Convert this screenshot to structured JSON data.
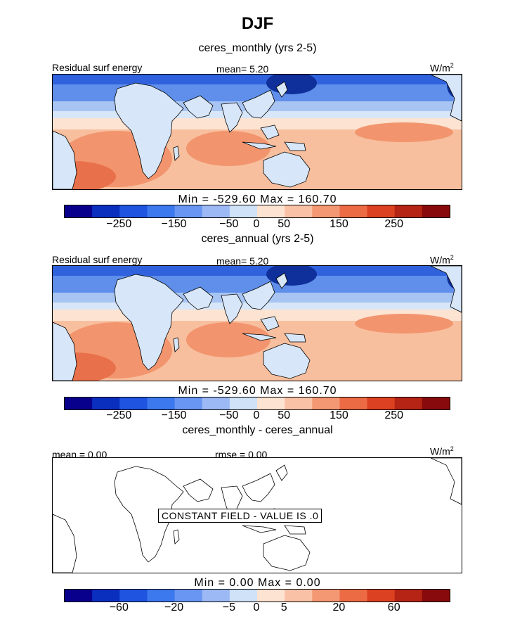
{
  "figure": {
    "title": "DJF",
    "units": "W/m",
    "units_exponent": "2"
  },
  "chart_data": [
    {
      "type": "heatmap",
      "title": "ceres_monthly (yrs 2-5)",
      "field_label": "Residual surf energy",
      "mean_label": "mean=   5.20",
      "mean": 5.2,
      "min": -529.6,
      "max": 160.7,
      "minmax_label": "Min = -529.60 Max = 160.70",
      "colorbar": {
        "levels": [
          -300,
          -250,
          -200,
          -150,
          -100,
          -50,
          -25,
          0,
          25,
          50,
          100,
          150,
          200,
          250,
          300
        ],
        "tick_labels": [
          "-250",
          "-150",
          "-50",
          "0",
          "50",
          "150",
          "250"
        ],
        "tick_values": [
          -250,
          -150,
          -50,
          0,
          50,
          150,
          250
        ]
      }
    },
    {
      "type": "heatmap",
      "title": "ceres_annual (yrs 2-5)",
      "field_label": "Residual surf energy",
      "mean_label": "mean=   5.20",
      "mean": 5.2,
      "min": -529.6,
      "max": 160.7,
      "minmax_label": "Min = -529.60 Max = 160.70",
      "colorbar": {
        "levels": [
          -300,
          -250,
          -200,
          -150,
          -100,
          -50,
          -25,
          0,
          25,
          50,
          100,
          150,
          200,
          250,
          300
        ],
        "tick_labels": [
          "-250",
          "-150",
          "-50",
          "0",
          "50",
          "150",
          "250"
        ],
        "tick_values": [
          -250,
          -150,
          -50,
          0,
          50,
          150,
          250
        ]
      }
    },
    {
      "type": "heatmap",
      "title": "ceres_monthly - ceres_annual",
      "mean_label": "mean =   0.00",
      "rmse_label": "rmse =   0.00",
      "mean": 0.0,
      "rmse": 0.0,
      "min": 0.0,
      "max": 0.0,
      "minmax_label": "Min =    0.00 Max =    0.00",
      "annotation": "CONSTANT FIELD - VALUE IS .0",
      "colorbar": {
        "tick_labels": [
          "-60",
          "-20",
          "-5",
          "0",
          "5",
          "20",
          "60"
        ],
        "tick_values": [
          -60,
          -20,
          -5,
          0,
          5,
          20,
          60
        ]
      }
    }
  ],
  "colorbar_colors": [
    "#08008c",
    "#0a2fbf",
    "#1e54e0",
    "#3c78ee",
    "#6996f2",
    "#9cb9f5",
    "#cfe2f7",
    "#fde4d2",
    "#f9c2a6",
    "#f49874",
    "#ec6b44",
    "#dc4121",
    "#b52414",
    "#880a0c"
  ],
  "region_colors": {
    "deep_blue": "#0f2f9a",
    "blue": "#2f62dc",
    "mid_blue": "#5f8fea",
    "light_blue": "#a8c4f3",
    "pale_blue": "#d7e6f8",
    "pale_orange": "#fde3d1",
    "light_orange": "#f8bf9f",
    "orange": "#f2956e",
    "dark_orange": "#e8704a"
  }
}
